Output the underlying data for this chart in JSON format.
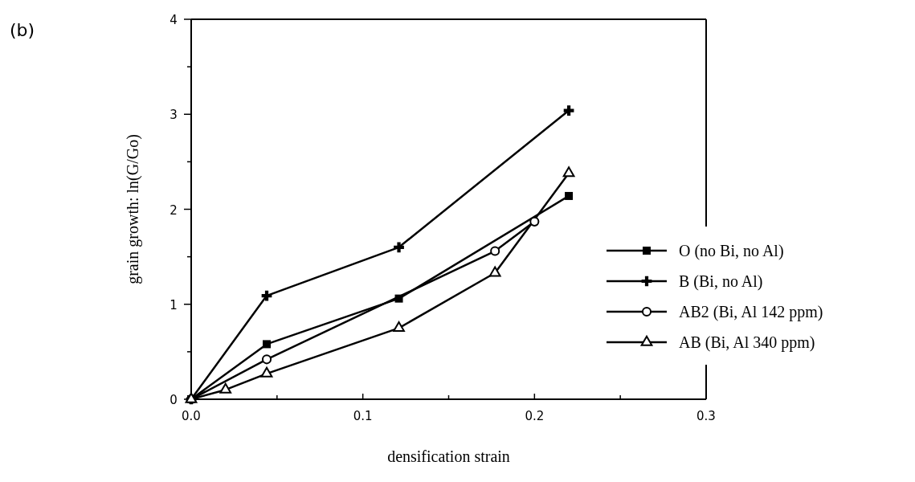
{
  "chart_data": {
    "type": "line",
    "xlabel": "densification strain",
    "ylabel": "grain growth: ln(G/Go)",
    "annotations": [
      "(b)"
    ],
    "xlim": [
      0,
      0.3
    ],
    "xticks": [
      {
        "value": 0,
        "label": "0.0"
      },
      {
        "value": 0.05,
        "label": null
      },
      {
        "value": 0.1,
        "label": "0.1"
      },
      {
        "value": 0.15,
        "label": null
      },
      {
        "value": 0.2,
        "label": "0.2"
      },
      {
        "value": 0.25,
        "label": null
      },
      {
        "value": 0.3,
        "label": "0.3"
      }
    ],
    "ylim": [
      0,
      4
    ],
    "yticks": [
      0,
      {
        "value": 0.5,
        "label": null
      },
      1,
      {
        "value": 1.5,
        "label": null
      },
      2,
      {
        "value": 2.5,
        "label": null
      },
      3,
      {
        "value": 3.5,
        "label": null
      },
      4
    ],
    "legend": "right",
    "grid": false,
    "series": [
      {
        "name": "O (no Bi, no Al)",
        "color": "#000000",
        "marker": "square",
        "x": [
          0,
          0.044,
          0.121,
          0.22
        ],
        "values": [
          0,
          0.58,
          1.06,
          2.14
        ]
      },
      {
        "name": "B (Bi, no Al)",
        "color": "#000000",
        "marker": "cross",
        "x": [
          0,
          0.044,
          0.121,
          0.22
        ],
        "values": [
          0,
          1.09,
          1.6,
          3.04
        ]
      },
      {
        "name": "AB2 (Bi, Al 142 ppm)",
        "color": "#000000",
        "marker": "circle",
        "x": [
          0,
          0.044,
          0.177,
          0.2
        ],
        "values": [
          0,
          0.42,
          1.56,
          1.87
        ]
      },
      {
        "name": "AB (Bi, Al 340 ppm)",
        "color": "#000000",
        "marker": "triangle",
        "x": [
          0,
          0.02,
          0.044,
          0.121,
          0.177,
          0.22
        ],
        "values": [
          0,
          0.1,
          0.27,
          0.75,
          1.33,
          2.38
        ]
      }
    ]
  }
}
